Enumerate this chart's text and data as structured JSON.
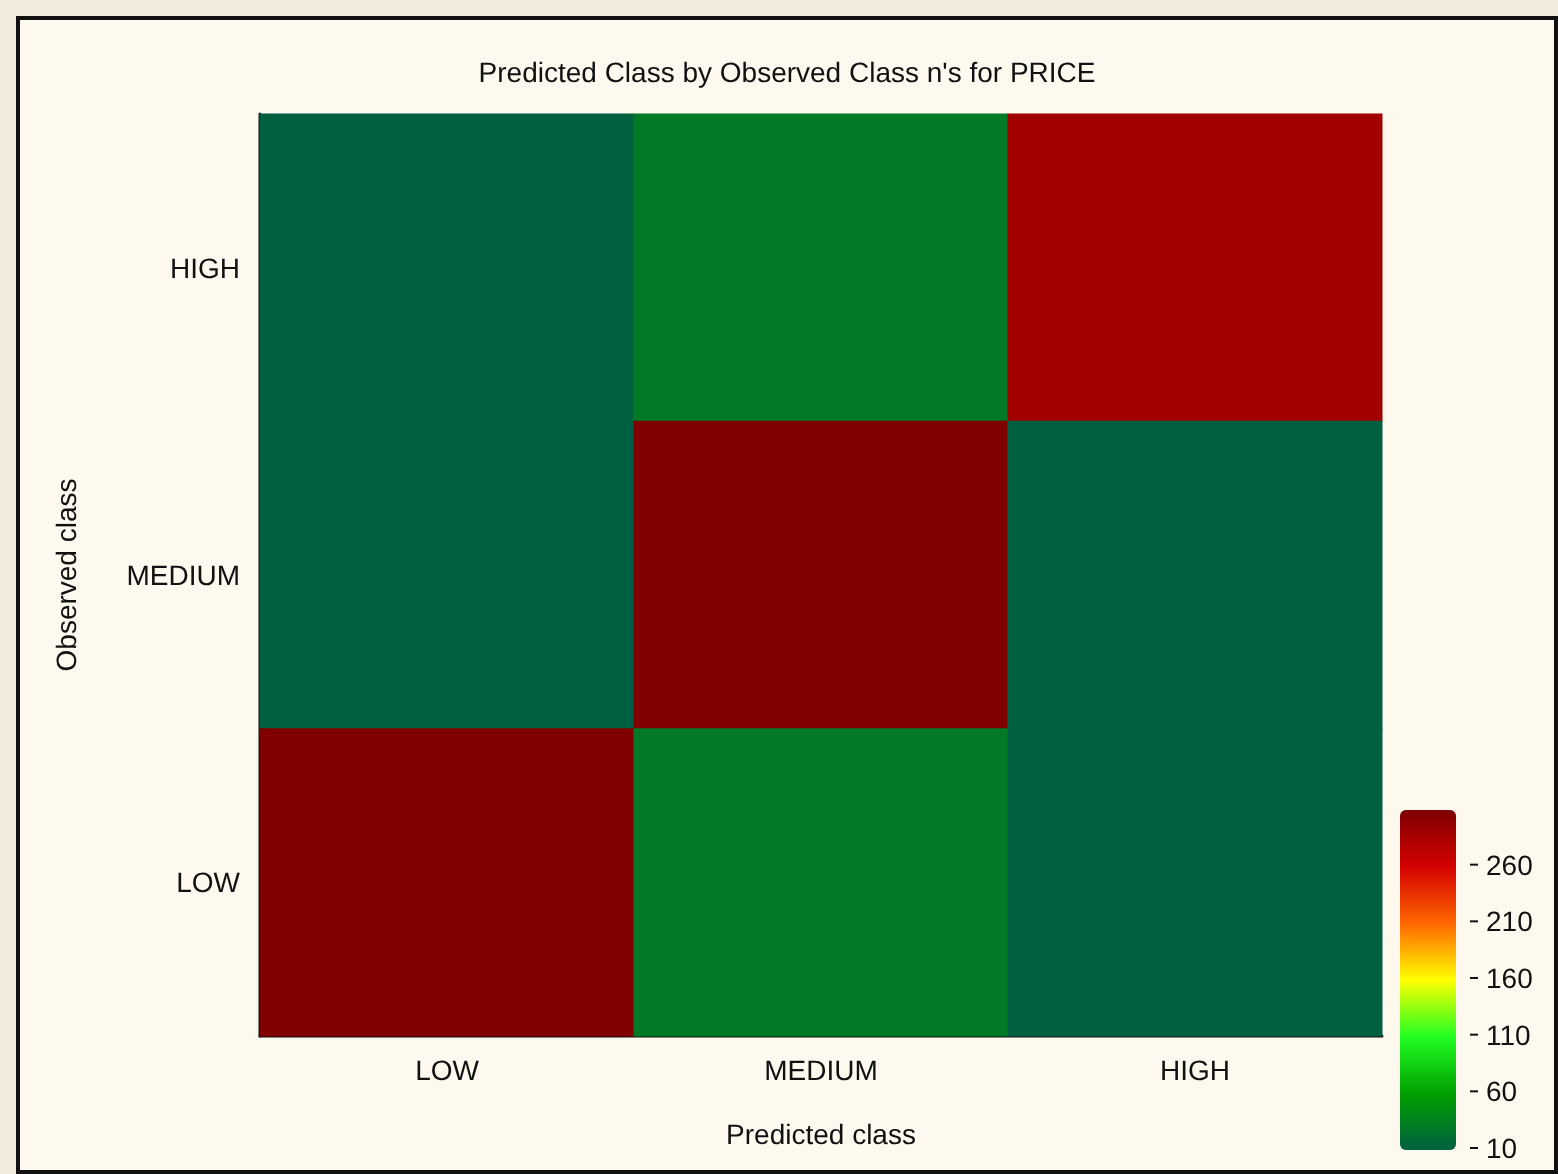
{
  "chart_data": {
    "type": "heatmap",
    "title": "Predicted Class by Observed Class n's for PRICE",
    "xlabel": "Predicted class",
    "ylabel": "Observed class",
    "categories": [
      "LOW",
      "MEDIUM",
      "HIGH"
    ],
    "y_categories": [
      "HIGH",
      "MEDIUM",
      "LOW"
    ],
    "cells": [
      [
        10,
        30,
        290
      ],
      [
        10,
        310,
        10
      ],
      [
        310,
        30,
        10
      ]
    ],
    "clim": [
      10,
      310
    ],
    "cticks": [
      10,
      60,
      110,
      160,
      210,
      260
    ]
  }
}
